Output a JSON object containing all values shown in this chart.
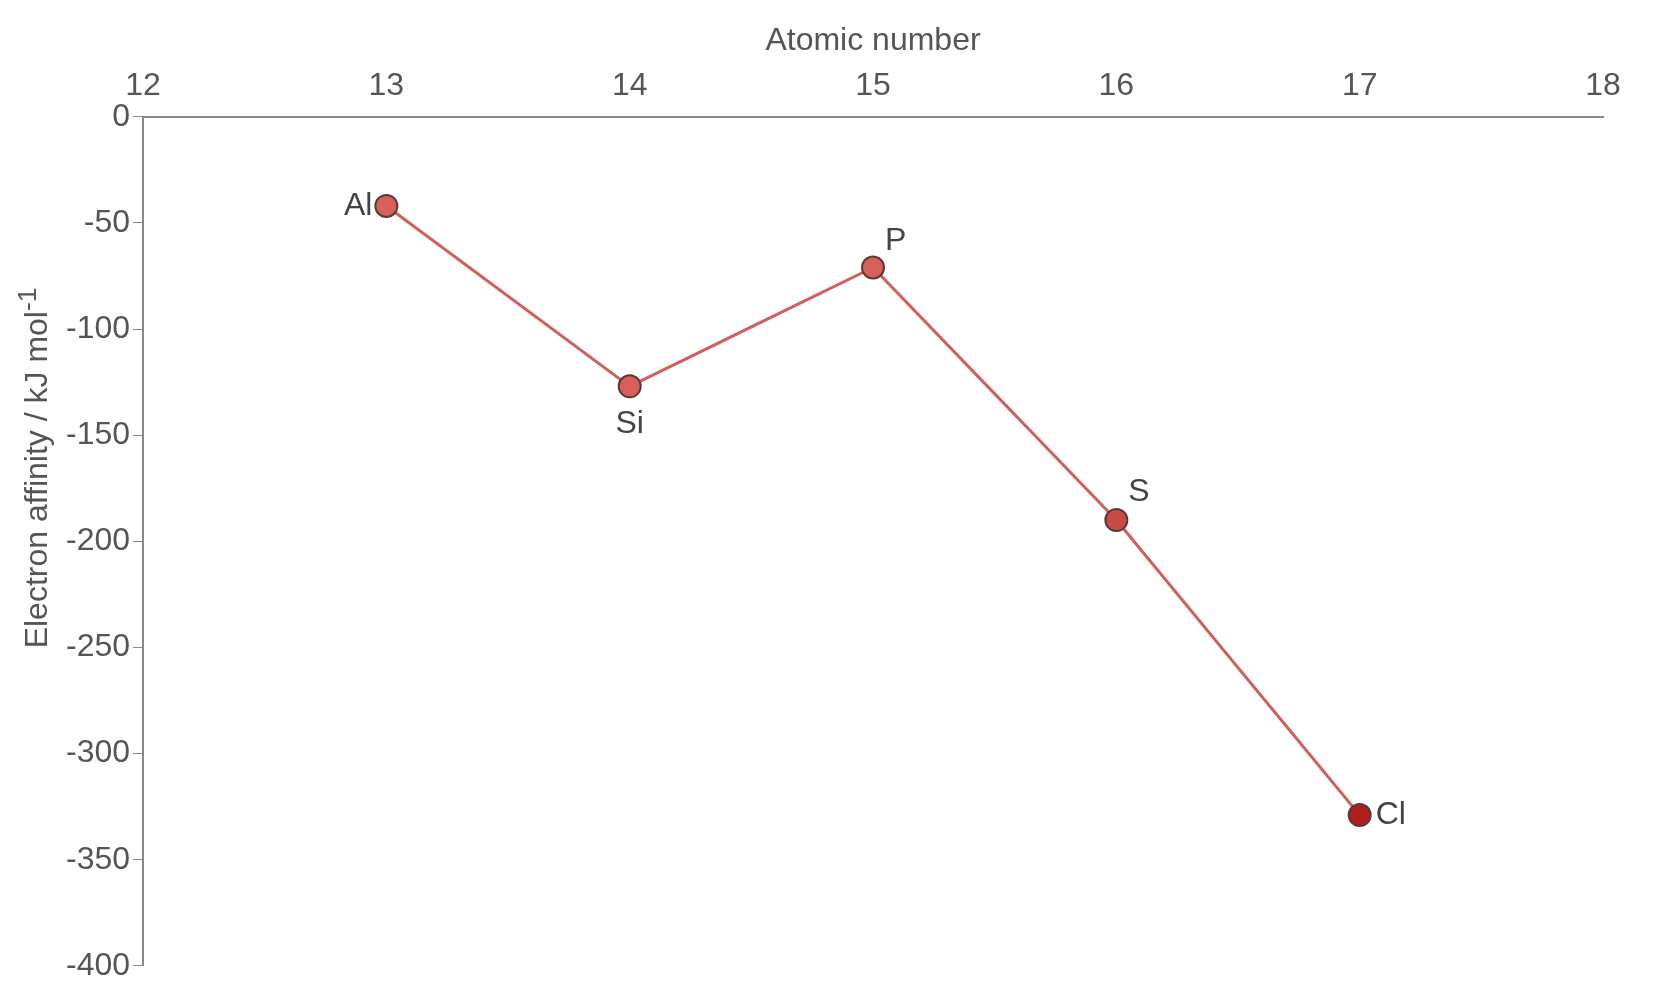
{
  "chart_data": {
    "type": "line",
    "xlabel": "Atomic number",
    "ylabel": "Electron affinity / kJ mol$^{-1}$",
    "x": [
      13,
      14,
      15,
      16,
      17
    ],
    "series": [
      {
        "values": [
          -42,
          -127,
          -71,
          -190,
          -329
        ],
        "color": "#d0605a",
        "colors": [
          "#d9605a",
          "#d9605a",
          "#d9605a",
          "#cc4a44",
          "#b01e1e"
        ]
      }
    ],
    "xlim": [
      12,
      18
    ],
    "xticks": [
      12,
      13,
      14,
      15,
      16,
      17,
      18
    ],
    "ylim": [
      -400,
      0
    ],
    "yticks": [
      0,
      -50,
      -100,
      -150,
      -200,
      -250,
      -300,
      -350,
      -400
    ],
    "annotations": [
      {
        "text": "Al",
        "x": 13,
        "y": -42
      },
      {
        "text": "Si",
        "x": 14,
        "y": -127
      },
      {
        "text": "P",
        "x": 15,
        "y": -71
      },
      {
        "text": "S",
        "x": 16,
        "y": -190
      },
      {
        "text": "Cl",
        "x": 17,
        "y": -329
      }
    ],
    "grid": false,
    "legend": false,
    "marker": "circle",
    "line_style": "solid"
  }
}
